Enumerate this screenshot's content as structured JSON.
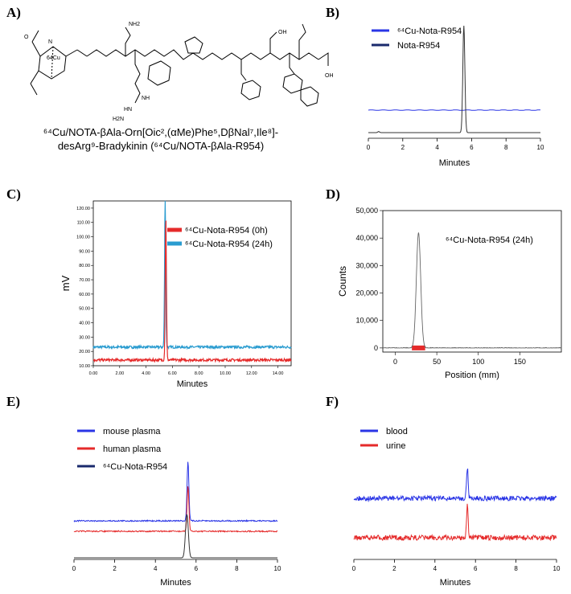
{
  "panels": {
    "a": {
      "label": "A)",
      "caption_line1": "⁶⁴Cu/NOTA-βAla-Orn[Oic²,(αMe)Phe⁵,DβNal⁷,Ile⁸]-",
      "caption_line2": "desArg⁹-Bradykinin (⁶⁴Cu/NOTA-βAla-R954)",
      "structure_labels": [
        "64Cu",
        "NH2",
        "NH",
        "HN",
        "H2N",
        "OH",
        "O",
        "N"
      ]
    },
    "b": {
      "label": "B)"
    },
    "c": {
      "label": "C)"
    },
    "d": {
      "label": "D)"
    },
    "e": {
      "label": "E)"
    },
    "f": {
      "label": "F)"
    }
  },
  "colors": {
    "blue": "#2a35e6",
    "navy": "#1a2a6c",
    "red": "#e52a2a",
    "cyan": "#2a9cd0",
    "grey": "#666666"
  },
  "chart_data": [
    {
      "id": "B",
      "type": "line",
      "xlabel": "Minutes",
      "ylabel": "",
      "xlim": [
        0,
        10
      ],
      "x_ticks": [
        0,
        2,
        4,
        6,
        8,
        10
      ],
      "series": [
        {
          "name": "⁶⁴Cu-Nota-R954",
          "color": "#2a35e6",
          "baseline": 0.25,
          "peak_x": 5.6,
          "peak_height": 0.0
        },
        {
          "name": "Nota-R954",
          "color": "#1a2a6c",
          "baseline": 0.05,
          "peak_x": 5.55,
          "peak_height": 0.95
        }
      ]
    },
    {
      "id": "C",
      "type": "line",
      "xlabel": "Minutes",
      "ylabel": "mV",
      "xlim": [
        0,
        15
      ],
      "ylim": [
        10,
        125
      ],
      "x_ticks": [
        "0.00",
        "2.00",
        "4.00",
        "6.00",
        "8.00",
        "10.00",
        "12.00",
        "14.00"
      ],
      "y_ticks": [
        "10.00",
        "20.00",
        "30.00",
        "40.00",
        "50.00",
        "60.00",
        "70.00",
        "80.00",
        "90.00",
        "100.00",
        "110.00",
        "120.00"
      ],
      "series": [
        {
          "name": "⁶⁴Cu-Nota-R954 (0h)",
          "color": "#e52a2a",
          "baseline": 14,
          "peak_x": 5.5,
          "peak_y": 114
        },
        {
          "name": "⁶⁴Cu-Nota-R954 (24h)",
          "color": "#2a9cd0",
          "baseline": 23,
          "peak_x": 5.45,
          "peak_y": 126
        }
      ]
    },
    {
      "id": "D",
      "type": "line",
      "xlabel": "Position (mm)",
      "ylabel": "Counts",
      "xlim": [
        -15,
        200
      ],
      "ylim": [
        -1500,
        50000
      ],
      "x_ticks": [
        "0",
        "50",
        "100",
        "150"
      ],
      "y_ticks": [
        "0",
        "10,000",
        "20,000",
        "30,000",
        "40,000",
        "50,000"
      ],
      "annotation": "⁶⁴Cu-Nota-R954 (24h)",
      "series": [
        {
          "name": "⁶⁴Cu-Nota-R954 (24h)",
          "color": "#666666",
          "peak_x": 28,
          "peak_y": 42000,
          "roi_start": 20,
          "roi_end": 36
        }
      ]
    },
    {
      "id": "E",
      "type": "line",
      "xlabel": "Minutes",
      "ylabel": "",
      "xlim": [
        0,
        10
      ],
      "x_ticks": [
        0,
        2,
        4,
        6,
        8,
        10
      ],
      "series": [
        {
          "name": "mouse plasma",
          "color": "#2a35e6"
        },
        {
          "name": "human plasma",
          "color": "#e52a2a"
        },
        {
          "name": "⁶⁴Cu-Nota-R954",
          "color": "#1a2a6c"
        }
      ]
    },
    {
      "id": "F",
      "type": "line",
      "xlabel": "Minutes",
      "ylabel": "",
      "xlim": [
        0,
        10
      ],
      "x_ticks": [
        0,
        2,
        4,
        6,
        8,
        10
      ],
      "series": [
        {
          "name": "blood",
          "color": "#2a35e6"
        },
        {
          "name": "urine",
          "color": "#e52a2a"
        }
      ]
    }
  ]
}
